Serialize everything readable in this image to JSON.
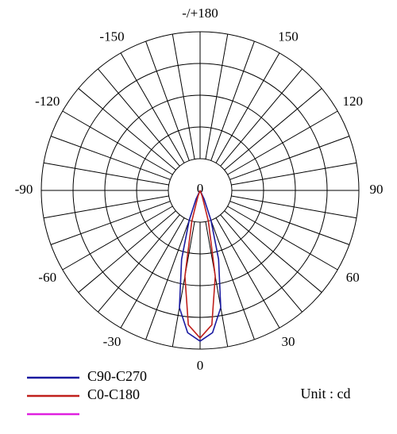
{
  "chart_data": {
    "type": "polar",
    "angles": [
      -30,
      -25,
      -20,
      -15,
      -10,
      -5,
      0,
      5,
      10,
      15,
      20,
      25,
      30
    ],
    "rlim": [
      0,
      100
    ],
    "rticks": [
      0
    ],
    "thetaticks": [
      0,
      30,
      60,
      90,
      120,
      150,
      {
        "value": 180,
        "label": "-/+180"
      },
      -150,
      -120,
      -90,
      -60,
      -30
    ],
    "series": [
      {
        "name": "C90-C270",
        "color": "#1a1aa0",
        "values": [
          0,
          6,
          20,
          45,
          75,
          90,
          95,
          90,
          75,
          45,
          20,
          6,
          0
        ]
      },
      {
        "name": "C0-C180",
        "color": "#c0201c",
        "values": [
          0,
          0,
          4,
          20,
          55,
          85,
          93,
          85,
          55,
          20,
          4,
          0,
          0
        ]
      },
      {
        "name": null,
        "color": "#e020e0",
        "values": [
          null,
          null,
          null,
          null,
          null,
          null,
          null,
          null,
          null,
          null,
          null,
          null,
          null
        ]
      }
    ],
    "annotation": "Unit : cd"
  }
}
